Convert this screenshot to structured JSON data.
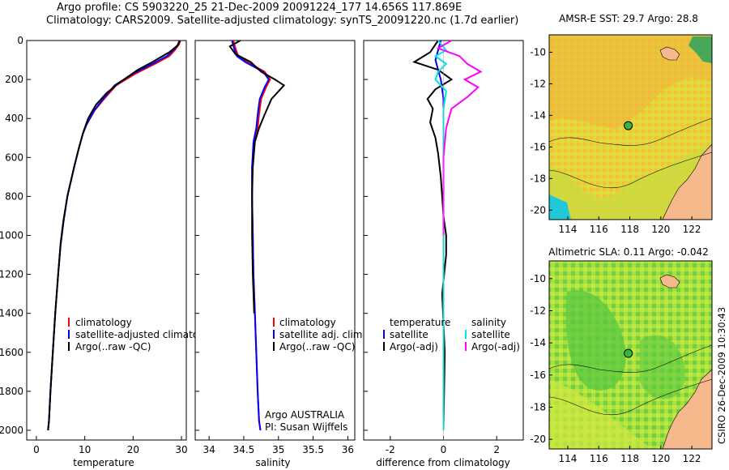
{
  "header": {
    "line1": "Argo profile: CS 5903220_25 21-Dec-2009 20091224_177 14.656S 117.869E",
    "line2": "Climatology: CARS2009. Satellite-adjusted climatology: synTS_20091220.nc (1.7d earlier)"
  },
  "credit": "CSIRO 26-Dec-2009 10:30:43",
  "colors": {
    "climatology": "#ff0000",
    "satellite": "#0000ff",
    "argo": "#000000",
    "salinity_satellite": "#00e5e5",
    "salinity_argo": "#ff00ff",
    "map_marker": "#3cb43c",
    "land": "#f5b98c",
    "sea": "#d8e640"
  },
  "chart_data": [
    {
      "type": "line",
      "name": "temperature",
      "xlabel": "temperature",
      "ylabel": "",
      "xlim": [
        -2,
        31
      ],
      "ylim": [
        2050,
        0
      ],
      "xticks": [
        "0",
        "10",
        "20",
        "30"
      ],
      "yticks": [
        "0",
        "200",
        "400",
        "600",
        "800",
        "1000",
        "1200",
        "1400",
        "1600",
        "1800",
        "2000"
      ],
      "legend": [
        "climatology",
        "satellite-adjusted climatology",
        "Argo(..raw -QC)"
      ],
      "series": [
        {
          "name": "climatology",
          "x": [
            29.8,
            29.5,
            28.6,
            27.5,
            24.5,
            20.5,
            16.5,
            14.0,
            12.0,
            10.4,
            9.6,
            8.7,
            7.8,
            6.4,
            5.6,
            5.0,
            4.5,
            3.9,
            3.4,
            2.9,
            2.6,
            2.4
          ],
          "y": [
            0,
            20,
            50,
            80,
            120,
            170,
            230,
            300,
            360,
            430,
            480,
            560,
            650,
            800,
            930,
            1050,
            1200,
            1400,
            1600,
            1800,
            1950,
            2000
          ]
        },
        {
          "name": "satellite-adjusted climatology",
          "x": [
            29.7,
            29.3,
            28.3,
            27.0,
            24.0,
            20.0,
            16.2,
            13.8,
            11.9,
            10.4,
            9.6,
            8.7,
            7.8,
            6.4,
            5.6,
            5.0,
            4.5,
            3.9,
            3.4,
            2.9,
            2.6,
            2.4
          ],
          "y": [
            0,
            20,
            50,
            80,
            120,
            170,
            230,
            300,
            360,
            430,
            480,
            560,
            650,
            800,
            930,
            1050,
            1200,
            1400,
            1600,
            1800,
            1950,
            2000
          ]
        },
        {
          "name": "Argo(..raw -QC)",
          "x": [
            29.6,
            29.2,
            27.5,
            24.0,
            21.0,
            17.5,
            14.5,
            12.3,
            10.7,
            9.7,
            8.8,
            7.9,
            6.5,
            5.6,
            5.0,
            4.5,
            3.9,
            3.4,
            2.9,
            2.6,
            2.4
          ],
          "y": [
            0,
            25,
            60,
            110,
            150,
            210,
            270,
            330,
            400,
            470,
            550,
            640,
            790,
            920,
            1040,
            1200,
            1400,
            1600,
            1800,
            1950,
            2000
          ]
        }
      ]
    },
    {
      "type": "line",
      "name": "salinity",
      "xlabel": "salinity",
      "xlim": [
        33.8,
        36.1
      ],
      "ylim": [
        2050,
        0
      ],
      "xticks": [
        "34",
        "34.5",
        "35",
        "35.5",
        "36"
      ],
      "legend": [
        "climatology",
        "satellite adj. clim.",
        "Argo(..raw -QC)"
      ],
      "annotation": [
        "Argo AUSTRALIA",
        "PI: Susan Wijffels"
      ],
      "series": [
        {
          "name": "climatology",
          "x": [
            34.35,
            34.38,
            34.42,
            34.55,
            34.8,
            34.88,
            34.82,
            34.75,
            34.72,
            34.7,
            34.65,
            34.62,
            34.62,
            34.63,
            34.64,
            34.66,
            34.68,
            34.7,
            34.72,
            34.74
          ],
          "y": [
            0,
            40,
            80,
            110,
            160,
            200,
            240,
            300,
            380,
            450,
            520,
            650,
            800,
            1000,
            1200,
            1400,
            1600,
            1800,
            1950,
            2000
          ]
        },
        {
          "name": "satellite adj. clim.",
          "x": [
            34.33,
            34.36,
            34.4,
            34.52,
            34.78,
            34.86,
            34.8,
            34.73,
            34.7,
            34.68,
            34.64,
            34.62,
            34.62,
            34.63,
            34.64,
            34.66,
            34.68,
            34.7,
            34.72,
            34.74
          ],
          "y": [
            0,
            40,
            80,
            110,
            160,
            200,
            240,
            300,
            380,
            450,
            520,
            650,
            800,
            1000,
            1200,
            1400,
            1600,
            1800,
            1950,
            2000
          ]
        },
        {
          "name": "Argo(..raw -QC)",
          "x": [
            34.45,
            34.3,
            34.38,
            34.6,
            34.75,
            34.95,
            35.08,
            34.9,
            34.8,
            34.72,
            34.66,
            34.63,
            34.62,
            34.62,
            34.63,
            34.65
          ],
          "y": [
            0,
            30,
            70,
            110,
            160,
            200,
            230,
            300,
            380,
            450,
            520,
            650,
            800,
            1000,
            1200,
            1400
          ]
        }
      ]
    },
    {
      "type": "line",
      "name": "difference",
      "xlabel": "difference from climatology",
      "xlim": [
        -3,
        3
      ],
      "ylim": [
        2050,
        0
      ],
      "xticks": [
        "-2",
        "0",
        "2"
      ],
      "legend": [
        "temperature",
        "satellite",
        "Argo(-adj)",
        "salinity",
        "satellite",
        "Argo(-adj)"
      ],
      "series": [
        {
          "name": "temperature satellite",
          "x": [
            -0.1,
            -0.2,
            -0.3,
            -0.2,
            -0.1,
            -0.05,
            0,
            0,
            0,
            0,
            0,
            0,
            0,
            0
          ],
          "y": [
            0,
            50,
            100,
            150,
            200,
            250,
            300,
            400,
            600,
            800,
            1000,
            1400,
            1800,
            2000
          ]
        },
        {
          "name": "temperature Argo(-adj)",
          "x": [
            -0.2,
            -0.5,
            -1.1,
            -0.2,
            0.3,
            -0.3,
            -0.6,
            -0.4,
            -0.5,
            -0.3,
            -0.2,
            -0.1,
            0,
            0.1,
            0.1,
            -0.05,
            0.05,
            0
          ],
          "y": [
            0,
            60,
            110,
            150,
            200,
            250,
            300,
            350,
            420,
            500,
            580,
            700,
            900,
            1000,
            1100,
            1300,
            1600,
            2000
          ]
        },
        {
          "name": "salinity satellite",
          "x": [
            -0.2,
            0.1,
            -0.3,
            0.1,
            -0.2,
            -0.3,
            0.1,
            0,
            0,
            0,
            0,
            0
          ],
          "y": [
            0,
            50,
            80,
            120,
            160,
            200,
            260,
            350,
            500,
            800,
            1200,
            2000
          ]
        },
        {
          "name": "salinity Argo(-adj)",
          "x": [
            0.3,
            -0.2,
            0.6,
            0.9,
            1.4,
            0.8,
            1.3,
            0.9,
            0.3,
            0.1,
            0,
            0
          ],
          "y": [
            0,
            40,
            80,
            120,
            160,
            200,
            240,
            290,
            350,
            450,
            600,
            1000
          ]
        }
      ]
    }
  ],
  "maps": [
    {
      "title": "AMSR-E SST: 29.7 Argo: 28.8",
      "xticks": [
        "114",
        "116",
        "118",
        "120",
        "122"
      ],
      "yticks": [
        "-10",
        "-12",
        "-14",
        "-16",
        "-18",
        "-20"
      ],
      "lon_range": [
        112.8,
        123.3
      ],
      "lat_range": [
        -20.6,
        -8.9
      ],
      "marker": {
        "lon": 117.9,
        "lat": -14.65
      }
    },
    {
      "title": "Altimetric SLA: 0.11 Argo: -0.042",
      "xticks": [
        "114",
        "116",
        "118",
        "120",
        "122"
      ],
      "yticks": [
        "-10",
        "-12",
        "-14",
        "-16",
        "-18",
        "-20"
      ],
      "lon_range": [
        112.8,
        123.3
      ],
      "lat_range": [
        -20.6,
        -8.9
      ],
      "marker": {
        "lon": 117.9,
        "lat": -14.65
      }
    }
  ]
}
